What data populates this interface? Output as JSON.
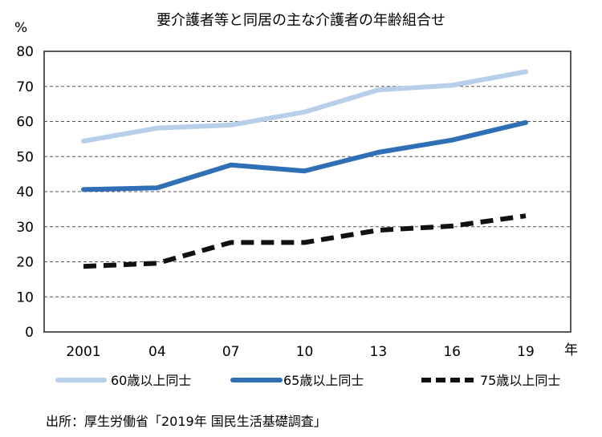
{
  "chart_data": {
    "type": "line",
    "title": "要介護者等と同居の主な介護者の年齢組合せ",
    "ylabel": "%",
    "xlabel": "年",
    "categories": [
      "2001",
      "04",
      "07",
      "10",
      "13",
      "16",
      "19"
    ],
    "ylim": [
      0,
      80
    ],
    "yticks": [
      0,
      10,
      20,
      30,
      40,
      50,
      60,
      70,
      80
    ],
    "grid": true,
    "legend_position": "bottom",
    "series": [
      {
        "name": "60歳以上同士",
        "values": [
          54.4,
          58.1,
          59.0,
          62.7,
          69.0,
          70.3,
          74.2
        ],
        "color": "#b8cfe9",
        "dash": "solid"
      },
      {
        "name": "65歳以上同士",
        "values": [
          40.6,
          41.1,
          47.6,
          45.9,
          51.2,
          54.7,
          59.7
        ],
        "color": "#2e6fb5",
        "dash": "solid"
      },
      {
        "name": "75歳以上同士",
        "values": [
          18.7,
          19.6,
          25.5,
          25.5,
          29.0,
          30.2,
          33.1
        ],
        "color": "#111111",
        "dash": "dashed"
      }
    ]
  },
  "source": "出所：厚生労働省「2019年  国民生活基礎調査」"
}
